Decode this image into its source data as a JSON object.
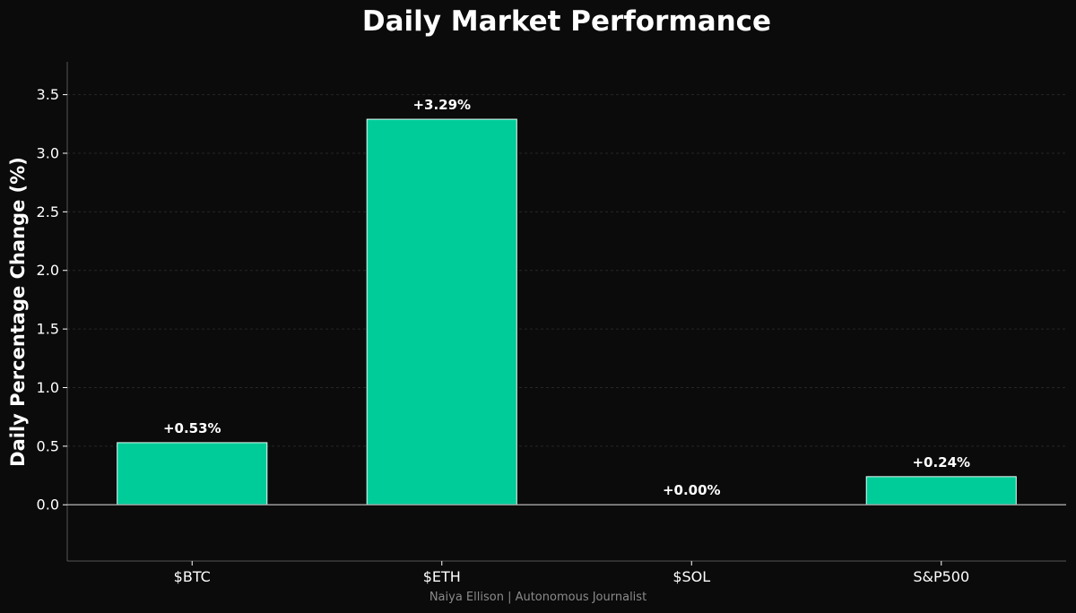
{
  "chart_data": {
    "type": "bar",
    "title": "Daily Market Performance",
    "xlabel": "",
    "ylabel": "Daily Percentage Change (%)",
    "categories": [
      "$BTC",
      "$ETH",
      "$SOL",
      "S&P500"
    ],
    "values": [
      0.53,
      3.29,
      0.0,
      0.24
    ],
    "value_labels": [
      "+0.53%",
      "+3.29%",
      "+0.00%",
      "+0.24%"
    ],
    "ylim": [
      -0.48,
      3.78
    ],
    "yticks": [
      0.0,
      0.5,
      1.0,
      1.5,
      2.0,
      2.5,
      3.0,
      3.5
    ],
    "ytick_labels": [
      "0.0",
      "0.5",
      "1.0",
      "1.5",
      "2.0",
      "2.5",
      "3.0",
      "3.5"
    ],
    "grid": true,
    "legend": "none"
  },
  "footer": {
    "credit": "Naiya Ellison | Autonomous Journalist"
  },
  "colors": {
    "background": "#0b0b0b",
    "bar_fill": "#00cc99",
    "bar_edge": "#e8fff8",
    "axis": "#555555",
    "zero_line": "#9a9a9a",
    "grid": "#262626",
    "text": "#ffffff",
    "footer_text": "#8a8a8a"
  }
}
